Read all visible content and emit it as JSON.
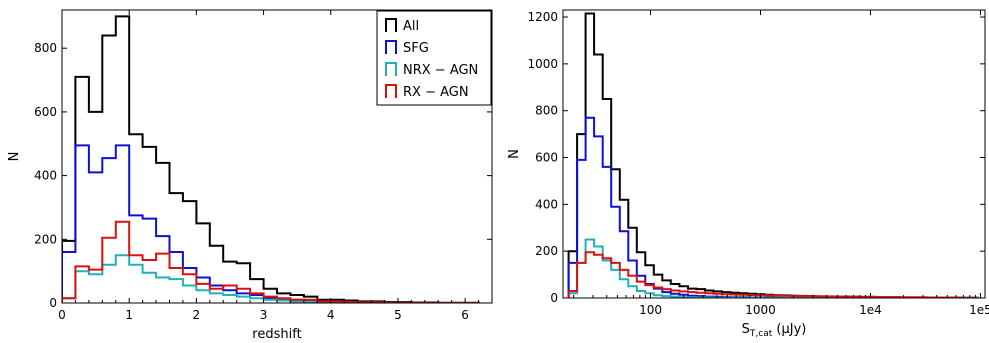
{
  "chart_data": [
    {
      "type": "histogram",
      "xlabel": "redshift",
      "ylabel": "N",
      "xlim": [
        0,
        6.4
      ],
      "ylim": [
        0,
        920
      ],
      "xticks": [
        0,
        1,
        2,
        3,
        4,
        5,
        6
      ],
      "xtick_labels": [
        "0",
        "1",
        "2",
        "3",
        "4",
        "5",
        "6"
      ],
      "yticks": [
        0,
        200,
        400,
        600,
        800
      ],
      "ytick_labels": [
        "0",
        "200",
        "400",
        "600",
        "800"
      ],
      "legend_position": "top-right",
      "bin_edges": [
        0,
        0.2,
        0.4,
        0.6,
        0.8,
        1.0,
        1.2,
        1.4,
        1.6,
        1.8,
        2.0,
        2.2,
        2.4,
        2.6,
        2.8,
        3.0,
        3.2,
        3.4,
        3.6,
        3.8,
        4.0,
        4.2,
        4.4,
        4.6,
        4.8,
        5.0,
        5.2,
        5.4,
        5.6,
        5.8,
        6.0,
        6.2
      ],
      "series": [
        {
          "name": "All",
          "color": "#000000",
          "values": [
            195,
            710,
            600,
            840,
            900,
            530,
            490,
            440,
            345,
            320,
            250,
            180,
            130,
            125,
            75,
            45,
            30,
            25,
            20,
            10,
            10,
            8,
            5,
            5,
            3,
            3,
            2,
            2,
            1,
            1,
            1
          ]
        },
        {
          "name": "SFG",
          "color": "#1010d0",
          "values": [
            160,
            495,
            410,
            455,
            495,
            275,
            265,
            210,
            160,
            110,
            80,
            55,
            40,
            30,
            25,
            15,
            12,
            10,
            8,
            5,
            5,
            3,
            2,
            2,
            1,
            1,
            1,
            1,
            0,
            0,
            0
          ]
        },
        {
          "name": "NRX − AGN",
          "color": "#20b0b8",
          "values": [
            15,
            100,
            90,
            120,
            150,
            120,
            95,
            80,
            75,
            55,
            40,
            30,
            25,
            20,
            15,
            10,
            8,
            5,
            4,
            3,
            2,
            2,
            1,
            1,
            1,
            1,
            1,
            1,
            1,
            0,
            0
          ]
        },
        {
          "name": "RX − AGN",
          "color": "#dd1010",
          "values": [
            15,
            115,
            105,
            205,
            255,
            150,
            135,
            155,
            110,
            90,
            60,
            45,
            55,
            45,
            30,
            20,
            15,
            10,
            10,
            5,
            5,
            3,
            2,
            2,
            1,
            1,
            1,
            1,
            0,
            0,
            0
          ]
        }
      ]
    },
    {
      "type": "histogram",
      "xlabel_main": "S",
      "xlabel_sub": "T,cat",
      "xlabel_unit": " (μJy)",
      "ylabel": "N",
      "xscale": "log",
      "xlim": [
        16,
        110000
      ],
      "ylim": [
        0,
        1230
      ],
      "xticks": [
        100,
        1000,
        10000,
        100000
      ],
      "xtick_labels": [
        "100",
        "1000",
        "1e4",
        "1e5"
      ],
      "yticks": [
        0,
        200,
        400,
        600,
        800,
        1000,
        1200
      ],
      "ytick_labels": [
        "0",
        "200",
        "400",
        "600",
        "800",
        "1000",
        "1200"
      ],
      "bin_edges": [
        18,
        21.5,
        25.7,
        30.7,
        36.7,
        43.9,
        52.5,
        62.8,
        75,
        89.7,
        107,
        128,
        153,
        183,
        219,
        262,
        313,
        374,
        447,
        534,
        638,
        763,
        912,
        1090,
        1303,
        1558,
        1862,
        2226,
        2660,
        3180,
        3801,
        4543,
        5430,
        6490,
        7757,
        9272,
        11082,
        13245,
        15831,
        18922,
        22616,
        27032,
        32310,
        38617,
        46157,
        55168,
        65938,
        78811,
        94197
      ],
      "series": [
        {
          "name": "All",
          "color": "#000000",
          "values": [
            200,
            700,
            1215,
            1040,
            850,
            550,
            420,
            300,
            195,
            140,
            100,
            75,
            60,
            50,
            40,
            38,
            32,
            28,
            25,
            22,
            20,
            18,
            16,
            14,
            12,
            11,
            10,
            9,
            8,
            7,
            6,
            6,
            5,
            5,
            4,
            4,
            3,
            3,
            3,
            2,
            2,
            2,
            2,
            1,
            1,
            1,
            1,
            1
          ]
        },
        {
          "name": "SFG",
          "color": "#1010d0",
          "values": [
            150,
            590,
            770,
            690,
            560,
            390,
            285,
            160,
            95,
            60,
            40,
            25,
            18,
            14,
            10,
            8,
            6,
            5,
            4,
            3,
            3,
            2,
            2,
            2,
            1,
            1,
            1,
            1,
            1,
            1,
            0,
            0,
            0,
            0,
            0,
            0,
            0,
            0,
            0,
            0,
            0,
            0,
            0,
            0,
            0,
            0,
            0,
            0
          ]
        },
        {
          "name": "NRX − AGN",
          "color": "#20b0b8",
          "values": [
            20,
            150,
            250,
            220,
            160,
            120,
            80,
            50,
            30,
            20,
            12,
            8,
            6,
            4,
            3,
            2,
            2,
            1,
            1,
            1,
            1,
            1,
            1,
            0,
            0,
            0,
            0,
            0,
            0,
            0,
            0,
            0,
            0,
            0,
            0,
            0,
            0,
            0,
            0,
            0,
            0,
            0,
            0,
            0,
            0,
            0,
            0,
            0
          ]
        },
        {
          "name": "RX − AGN",
          "color": "#dd1010",
          "values": [
            30,
            150,
            195,
            185,
            170,
            150,
            120,
            95,
            70,
            55,
            45,
            38,
            32,
            28,
            25,
            22,
            20,
            18,
            16,
            15,
            14,
            13,
            12,
            11,
            10,
            10,
            9,
            8,
            8,
            7,
            7,
            6,
            6,
            5,
            5,
            5,
            4,
            4,
            4,
            3,
            3,
            3,
            2,
            2,
            2,
            2,
            1,
            1
          ]
        }
      ]
    }
  ]
}
